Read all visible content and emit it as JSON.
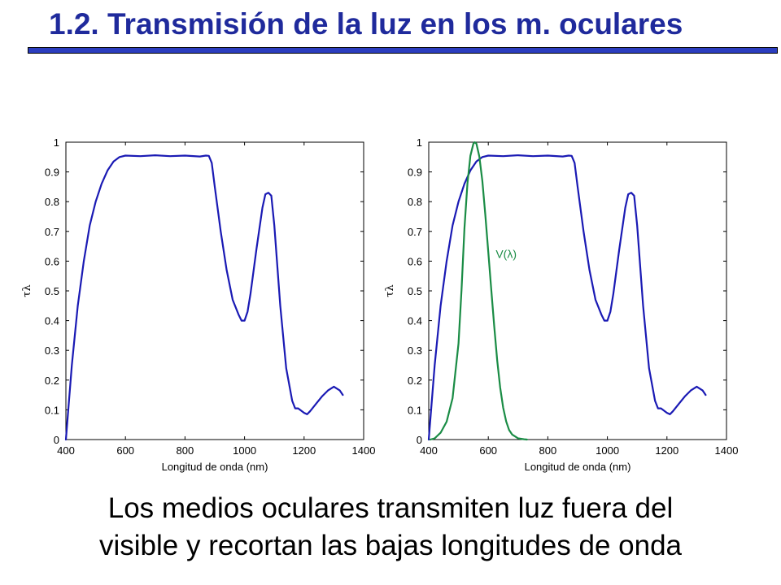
{
  "slide": {
    "title": "1.2. Transmisión de la luz en los m. oculares",
    "title_color": "#1f2a9c",
    "rule_color": "#2b3dbf",
    "caption_lines": [
      "Los medios oculares transmiten luz fuera del",
      "visible y recortan las bajas longitudes de onda"
    ]
  },
  "chart_data": [
    {
      "type": "line",
      "xlabel": "Longitud de onda (nm)",
      "ylabel": "τλ",
      "xlim": [
        400,
        1400
      ],
      "ylim": [
        0,
        1
      ],
      "xticks": [
        400,
        600,
        800,
        1000,
        1200,
        1400
      ],
      "yticks": [
        0,
        0.1,
        0.2,
        0.3,
        0.4,
        0.5,
        0.6,
        0.7,
        0.8,
        0.9,
        1
      ],
      "ytick_labels": [
        "0",
        "0.1",
        "0.2",
        "0.3",
        "0.4",
        "0.5",
        "0.6",
        "0.7",
        "0.8",
        "0.9",
        "1"
      ],
      "grid": false,
      "series": [
        {
          "color": "#1a1ab4",
          "x": [
            400,
            420,
            440,
            460,
            480,
            500,
            520,
            540,
            560,
            580,
            600,
            650,
            700,
            750,
            800,
            850,
            870,
            880,
            890,
            900,
            920,
            940,
            960,
            980,
            990,
            1000,
            1010,
            1020,
            1040,
            1060,
            1070,
            1080,
            1090,
            1100,
            1120,
            1140,
            1160,
            1170,
            1180,
            1200,
            1210,
            1220,
            1240,
            1260,
            1280,
            1300,
            1320,
            1330
          ],
          "y": [
            0.0,
            0.25,
            0.45,
            0.6,
            0.72,
            0.8,
            0.86,
            0.905,
            0.935,
            0.95,
            0.955,
            0.953,
            0.956,
            0.953,
            0.955,
            0.952,
            0.955,
            0.954,
            0.93,
            0.85,
            0.7,
            0.57,
            0.47,
            0.42,
            0.4,
            0.4,
            0.43,
            0.49,
            0.64,
            0.78,
            0.825,
            0.83,
            0.82,
            0.72,
            0.45,
            0.24,
            0.13,
            0.105,
            0.105,
            0.09,
            0.085,
            0.095,
            0.12,
            0.145,
            0.165,
            0.178,
            0.165,
            0.15
          ]
        }
      ]
    },
    {
      "type": "line",
      "xlabel": "Longitud de onda (nm)",
      "ylabel": "τλ",
      "xlim": [
        400,
        1400
      ],
      "ylim": [
        0,
        1
      ],
      "xticks": [
        400,
        600,
        800,
        1000,
        1200,
        1400
      ],
      "yticks": [
        0,
        0.1,
        0.2,
        0.3,
        0.4,
        0.5,
        0.6,
        0.7,
        0.8,
        0.9,
        1
      ],
      "ytick_labels": [
        "0",
        "0.1",
        "0.2",
        "0.3",
        "0.4",
        "0.5",
        "0.6",
        "0.7",
        "0.8",
        "0.9",
        "1"
      ],
      "grid": false,
      "annotations": [
        {
          "text": "V(λ)",
          "x": 625,
          "y": 0.61,
          "color": "#1a8c45"
        }
      ],
      "series": [
        {
          "color": "#1a1ab4",
          "x": [
            400,
            420,
            440,
            460,
            480,
            500,
            520,
            540,
            560,
            580,
            600,
            650,
            700,
            750,
            800,
            850,
            870,
            880,
            890,
            900,
            920,
            940,
            960,
            980,
            990,
            1000,
            1010,
            1020,
            1040,
            1060,
            1070,
            1080,
            1090,
            1100,
            1120,
            1140,
            1160,
            1170,
            1180,
            1200,
            1210,
            1220,
            1240,
            1260,
            1280,
            1300,
            1320,
            1330
          ],
          "y": [
            0.0,
            0.25,
            0.45,
            0.6,
            0.72,
            0.8,
            0.86,
            0.905,
            0.935,
            0.95,
            0.955,
            0.953,
            0.956,
            0.953,
            0.955,
            0.952,
            0.955,
            0.954,
            0.93,
            0.85,
            0.7,
            0.57,
            0.47,
            0.42,
            0.4,
            0.4,
            0.43,
            0.49,
            0.64,
            0.78,
            0.825,
            0.83,
            0.82,
            0.72,
            0.45,
            0.24,
            0.13,
            0.105,
            0.105,
            0.09,
            0.085,
            0.095,
            0.12,
            0.145,
            0.165,
            0.178,
            0.165,
            0.15
          ]
        },
        {
          "name": "V(λ)",
          "color": "#1a8c45",
          "x": [
            405,
            420,
            440,
            460,
            480,
            500,
            510,
            520,
            530,
            540,
            550,
            555,
            560,
            570,
            580,
            590,
            600,
            610,
            620,
            630,
            640,
            650,
            660,
            670,
            680,
            700,
            720,
            730
          ],
          "y": [
            0.0,
            0.004,
            0.023,
            0.06,
            0.139,
            0.323,
            0.503,
            0.71,
            0.862,
            0.954,
            0.995,
            1.0,
            0.995,
            0.952,
            0.87,
            0.757,
            0.631,
            0.503,
            0.381,
            0.265,
            0.175,
            0.107,
            0.061,
            0.032,
            0.017,
            0.004,
            0.001,
            0.0
          ]
        }
      ]
    }
  ]
}
